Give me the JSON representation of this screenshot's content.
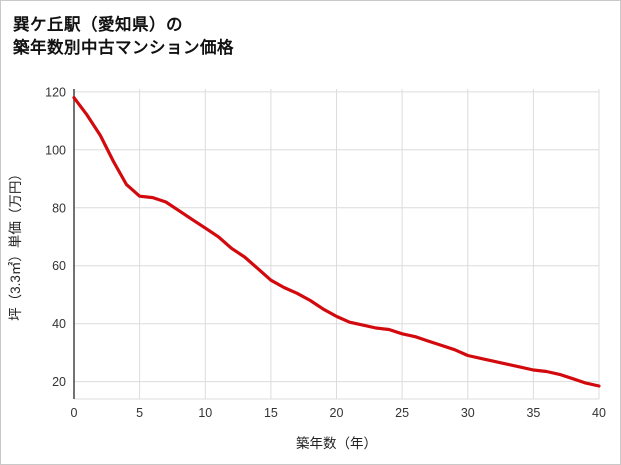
{
  "chart_data": {
    "type": "line",
    "title": "巽ケ丘駅（愛知県）の\n築年数別中古マンション価格",
    "xlabel": "築年数（年）",
    "ylabel": "坪（3.3㎡）単価（万円）",
    "x": [
      0,
      1,
      2,
      3,
      4,
      5,
      6,
      7,
      8,
      9,
      10,
      11,
      12,
      13,
      14,
      15,
      16,
      17,
      18,
      19,
      20,
      21,
      22,
      23,
      24,
      25,
      26,
      27,
      28,
      29,
      30,
      31,
      32,
      33,
      34,
      35,
      36,
      37,
      38,
      39,
      40
    ],
    "values": [
      118,
      112,
      105,
      96,
      88,
      84,
      83.5,
      82,
      79,
      76,
      73,
      70,
      66,
      63,
      59,
      55,
      52.5,
      50.5,
      48,
      45,
      42.5,
      40.5,
      39.5,
      38.5,
      38,
      36.5,
      35.5,
      34,
      32.5,
      31,
      29,
      28,
      27,
      26,
      25,
      24,
      23.5,
      22.5,
      21,
      19.5,
      18.5
    ],
    "xlim": [
      0,
      40
    ],
    "ylim": [
      14,
      121
    ],
    "xticks": [
      0,
      5,
      10,
      15,
      20,
      25,
      30,
      35,
      40
    ],
    "yticks": [
      20,
      40,
      60,
      80,
      100,
      120
    ],
    "grid": true,
    "legend": false,
    "line_color": "#d20a0e",
    "grid_color": "#dcdcdc",
    "axis_color": "#444444"
  }
}
